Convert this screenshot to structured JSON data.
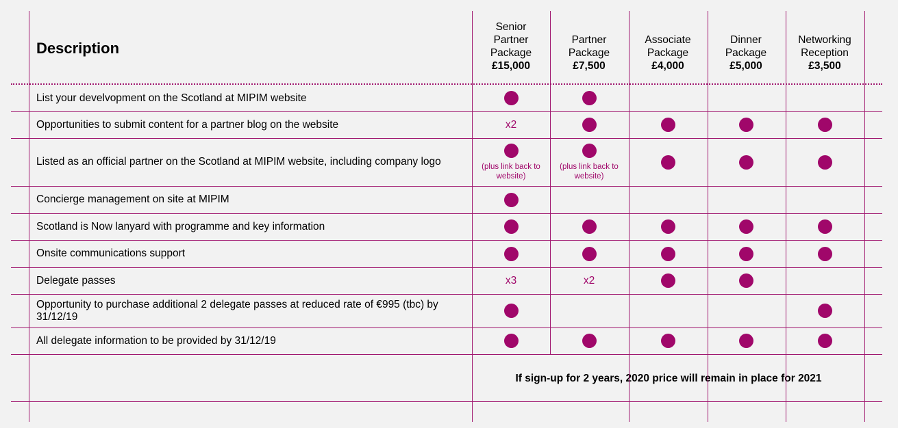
{
  "header": {
    "description_label": "Description",
    "packages": [
      {
        "name": "Senior\nPartner\nPackage",
        "price": "£15,000"
      },
      {
        "name": "Partner\nPackage",
        "price": "£7,500"
      },
      {
        "name": "Associate\nPackage",
        "price": "£4,000"
      },
      {
        "name": "Dinner\nPackage",
        "price": "£5,000"
      },
      {
        "name": "Networking\nReception",
        "price": "£3,500"
      }
    ]
  },
  "rows": [
    {
      "label": "List your develvopment on the Scotland at MIPIM website",
      "cells": [
        {
          "type": "dot"
        },
        {
          "type": "dot"
        },
        {
          "type": "empty"
        },
        {
          "type": "empty"
        },
        {
          "type": "empty"
        }
      ]
    },
    {
      "label": "Opportunities to submit content for a partner blog on the website",
      "cells": [
        {
          "type": "text",
          "text": "x2"
        },
        {
          "type": "dot"
        },
        {
          "type": "dot"
        },
        {
          "type": "dot"
        },
        {
          "type": "dot"
        }
      ]
    },
    {
      "label": "Listed as an official partner on the Scotland at MIPIM website, including company logo",
      "cells": [
        {
          "type": "dot",
          "note": "(plus link back to\nwebsite)"
        },
        {
          "type": "dot",
          "note": "(plus link back to\nwebsite)"
        },
        {
          "type": "dot"
        },
        {
          "type": "dot"
        },
        {
          "type": "dot"
        }
      ]
    },
    {
      "label": "Concierge management on site at MIPIM",
      "cells": [
        {
          "type": "dot"
        },
        {
          "type": "empty"
        },
        {
          "type": "empty"
        },
        {
          "type": "empty"
        },
        {
          "type": "empty"
        }
      ]
    },
    {
      "label": "Scotland is Now lanyard with programme and key information",
      "cells": [
        {
          "type": "dot"
        },
        {
          "type": "dot"
        },
        {
          "type": "dot"
        },
        {
          "type": "dot"
        },
        {
          "type": "dot"
        }
      ]
    },
    {
      "label": "Onsite communications support",
      "cells": [
        {
          "type": "dot"
        },
        {
          "type": "dot"
        },
        {
          "type": "dot"
        },
        {
          "type": "dot"
        },
        {
          "type": "dot"
        }
      ]
    },
    {
      "label": "Delegate passes",
      "cells": [
        {
          "type": "text",
          "text": "x3"
        },
        {
          "type": "text",
          "text": "x2"
        },
        {
          "type": "dot"
        },
        {
          "type": "dot"
        },
        {
          "type": "empty"
        }
      ]
    },
    {
      "label": "Opportunity to purchase additional 2 delegate passes at reduced rate of €995 (tbc) by 31/12/19",
      "cells": [
        {
          "type": "dot"
        },
        {
          "type": "empty"
        },
        {
          "type": "empty"
        },
        {
          "type": "empty"
        },
        {
          "type": "dot"
        }
      ]
    },
    {
      "label": "All delegate information to be provided by 31/12/19",
      "cells": [
        {
          "type": "dot"
        },
        {
          "type": "dot"
        },
        {
          "type": "dot"
        },
        {
          "type": "dot"
        },
        {
          "type": "dot"
        }
      ]
    }
  ],
  "footer_note": "If sign-up for 2 years, 2020 price will remain in place for 2021"
}
